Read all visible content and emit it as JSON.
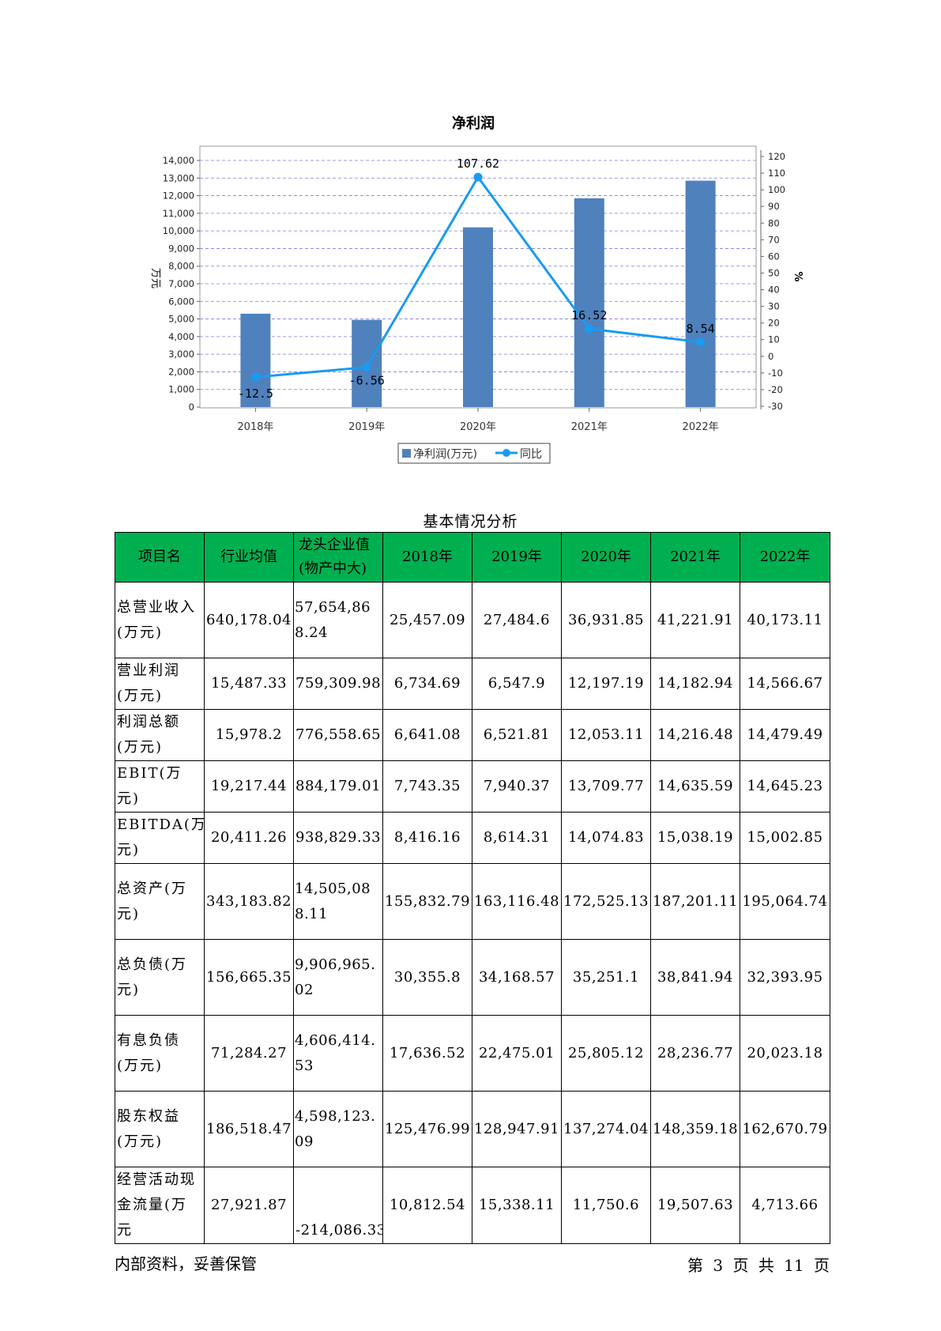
{
  "chart_data": {
    "type": "bar",
    "title": "净利润",
    "categories": [
      "2018年",
      "2019年",
      "2020年",
      "2021年",
      "2022年"
    ],
    "series": [
      {
        "name": "净利润(万元)",
        "type": "bar",
        "axis": "left",
        "color": "#4f81bd",
        "values": [
          5300,
          4950,
          10200,
          11850,
          12850
        ]
      },
      {
        "name": "同比",
        "type": "line",
        "axis": "right",
        "color": "#1a9bf0",
        "values": [
          -12.5,
          -6.56,
          107.62,
          16.52,
          8.54
        ],
        "labels": [
          "-12.5",
          "-6.56",
          "107.62",
          "16.52",
          "8.54"
        ]
      }
    ],
    "ylabel": "万元",
    "y2label": "%",
    "ylim": [
      0,
      14000
    ],
    "yticks": [
      "0",
      "1,000",
      "2,000",
      "3,000",
      "4,000",
      "5,000",
      "6,000",
      "7,000",
      "8,000",
      "9,000",
      "10,000",
      "11,000",
      "12,000",
      "13,000",
      "14,000"
    ],
    "y2lim": [
      -30,
      120
    ],
    "y2ticks": [
      "-30",
      "-20",
      "-10",
      "0",
      "10",
      "20",
      "30",
      "40",
      "50",
      "60",
      "70",
      "80",
      "90",
      "100",
      "110",
      "120"
    ],
    "grid": true,
    "legend": "bottom"
  },
  "table": {
    "caption": "基本情况分析",
    "headers": [
      "项目名",
      "行业均值",
      "龙头企业值(物产中大)",
      "2018年",
      "2019年",
      "2020年",
      "2021年",
      "2022年"
    ],
    "rows": [
      {
        "name": "总营业收入(万元)",
        "avg": "640,178.04",
        "leader": "57,654,868.24",
        "y2018": "25,457.09",
        "y2019": "27,484.6",
        "y2020": "36,931.85",
        "y2021": "41,221.91",
        "y2022": "40,173.11"
      },
      {
        "name": "营业利润(万元)",
        "avg": "15,487.33",
        "leader": "759,309.98",
        "y2018": "6,734.69",
        "y2019": "6,547.9",
        "y2020": "12,197.19",
        "y2021": "14,182.94",
        "y2022": "14,566.67"
      },
      {
        "name": "利润总额(万元)",
        "avg": "15,978.2",
        "leader": "776,558.65",
        "y2018": "6,641.08",
        "y2019": "6,521.81",
        "y2020": "12,053.11",
        "y2021": "14,216.48",
        "y2022": "14,479.49"
      },
      {
        "name": "EBIT(万元)",
        "avg": "19,217.44",
        "leader": "884,179.01",
        "y2018": "7,743.35",
        "y2019": "7,940.37",
        "y2020": "13,709.77",
        "y2021": "14,635.59",
        "y2022": "14,645.23"
      },
      {
        "name": "EBITDA(万元)",
        "avg": "20,411.26",
        "leader": "938,829.33",
        "y2018": "8,416.16",
        "y2019": "8,614.31",
        "y2020": "14,074.83",
        "y2021": "15,038.19",
        "y2022": "15,002.85"
      },
      {
        "name": "总资产(万元)",
        "avg": "343,183.82",
        "leader": "14,505,088.11",
        "y2018": "155,832.79",
        "y2019": "163,116.48",
        "y2020": "172,525.13",
        "y2021": "187,201.11",
        "y2022": "195,064.74"
      },
      {
        "name": "总负债(万元)",
        "avg": "156,665.35",
        "leader": "9,906,965.02",
        "y2018": "30,355.8",
        "y2019": "34,168.57",
        "y2020": "35,251.1",
        "y2021": "38,841.94",
        "y2022": "32,393.95"
      },
      {
        "name": "有息负债(万元)",
        "avg": "71,284.27",
        "leader": "4,606,414.53",
        "y2018": "17,636.52",
        "y2019": "22,475.01",
        "y2020": "25,805.12",
        "y2021": "28,236.77",
        "y2022": "20,023.18"
      },
      {
        "name": "股东权益(万元)",
        "avg": "186,518.47",
        "leader": "4,598,123.09",
        "y2018": "125,476.99",
        "y2019": "128,947.91",
        "y2020": "137,274.04",
        "y2021": "148,359.18",
        "y2022": "162,670.79"
      },
      {
        "name": "经营活动现金流量(万元",
        "avg": "27,921.87",
        "leader": "-214,086.33",
        "y2018": "10,812.54",
        "y2019": "15,338.11",
        "y2020": "11,750.6",
        "y2021": "19,507.63",
        "y2022": "4,713.66"
      }
    ]
  },
  "footer": {
    "left": "内部资料，妥善保管",
    "right": "第 3 页  共 11 页"
  }
}
